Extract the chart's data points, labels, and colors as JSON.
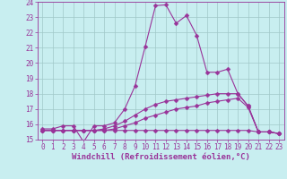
{
  "xlabel": "Windchill (Refroidissement éolien,°C)",
  "xlim": [
    -0.5,
    23.5
  ],
  "ylim": [
    15,
    24
  ],
  "yticks": [
    15,
    16,
    17,
    18,
    19,
    20,
    21,
    22,
    23,
    24
  ],
  "xticks": [
    0,
    1,
    2,
    3,
    4,
    5,
    6,
    7,
    8,
    9,
    10,
    11,
    12,
    13,
    14,
    15,
    16,
    17,
    18,
    19,
    20,
    21,
    22,
    23
  ],
  "background_color": "#c8eef0",
  "grid_color": "#a0c8c8",
  "line_color": "#993399",
  "lines": [
    {
      "x": [
        0,
        1,
        2,
        3,
        4,
        5,
        6,
        7,
        8,
        9,
        10,
        11,
        12,
        13,
        14,
        15,
        16,
        17,
        18,
        19,
        20,
        21,
        22,
        23
      ],
      "y": [
        15.7,
        15.7,
        15.9,
        15.9,
        14.85,
        15.9,
        15.9,
        16.1,
        17.0,
        18.5,
        21.1,
        23.75,
        23.8,
        22.6,
        23.1,
        21.8,
        19.4,
        19.4,
        19.6,
        18.0,
        17.2,
        15.5,
        15.5,
        15.4
      ]
    },
    {
      "x": [
        0,
        1,
        2,
        3,
        4,
        5,
        6,
        7,
        8,
        9,
        10,
        11,
        12,
        13,
        14,
        15,
        16,
        17,
        18,
        19,
        20,
        21,
        22,
        23
      ],
      "y": [
        15.6,
        15.6,
        15.6,
        15.6,
        15.6,
        15.6,
        15.7,
        15.9,
        16.2,
        16.6,
        17.0,
        17.3,
        17.5,
        17.6,
        17.7,
        17.8,
        17.9,
        18.0,
        18.0,
        18.0,
        17.2,
        15.5,
        15.5,
        15.4
      ]
    },
    {
      "x": [
        0,
        1,
        2,
        3,
        4,
        5,
        6,
        7,
        8,
        9,
        10,
        11,
        12,
        13,
        14,
        15,
        16,
        17,
        18,
        19,
        20,
        21,
        22,
        23
      ],
      "y": [
        15.6,
        15.6,
        15.6,
        15.6,
        15.6,
        15.6,
        15.6,
        15.7,
        15.9,
        16.1,
        16.4,
        16.6,
        16.8,
        17.0,
        17.1,
        17.2,
        17.4,
        17.5,
        17.6,
        17.7,
        17.1,
        15.5,
        15.5,
        15.4
      ]
    },
    {
      "x": [
        0,
        1,
        2,
        3,
        4,
        5,
        6,
        7,
        8,
        9,
        10,
        11,
        12,
        13,
        14,
        15,
        16,
        17,
        18,
        19,
        20,
        21,
        22,
        23
      ],
      "y": [
        15.6,
        15.6,
        15.6,
        15.6,
        15.6,
        15.6,
        15.6,
        15.6,
        15.6,
        15.6,
        15.6,
        15.6,
        15.6,
        15.6,
        15.6,
        15.6,
        15.6,
        15.6,
        15.6,
        15.6,
        15.6,
        15.5,
        15.5,
        15.4
      ]
    }
  ],
  "marker": "D",
  "marker_size": 2.5,
  "line_width": 0.8,
  "tick_fontsize": 5.5,
  "xlabel_fontsize": 6.5
}
